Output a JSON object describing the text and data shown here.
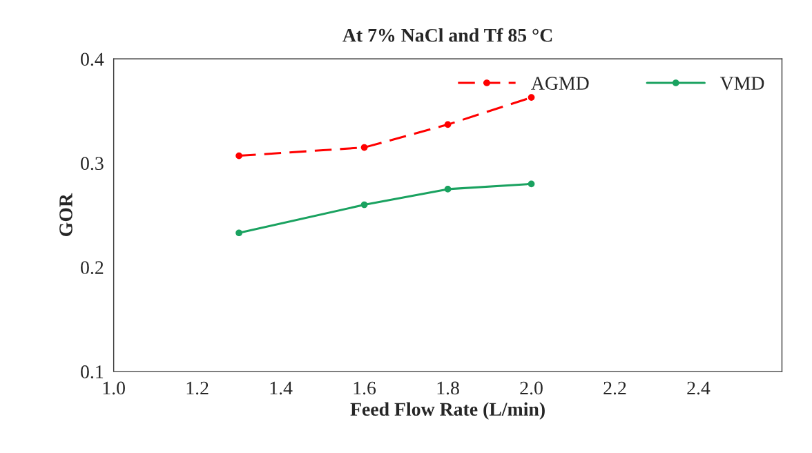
{
  "chart_data": {
    "type": "line",
    "title": "At 7% NaCl and Tf 85 °C",
    "xlabel": "Feed Flow Rate (L/min)",
    "ylabel": "GOR",
    "x": [
      1.3,
      1.6,
      1.8,
      2.0
    ],
    "series": [
      {
        "name": "AGMD",
        "color": "#ff0000",
        "values": [
          0.307,
          0.315,
          0.337,
          0.363
        ],
        "line_style": "dashed"
      },
      {
        "name": "VMD",
        "color": "#1aa260",
        "values": [
          0.233,
          0.26,
          0.275,
          0.28
        ],
        "line_style": "solid"
      }
    ],
    "xlim": [
      1.0,
      2.6
    ],
    "xticks": [
      {
        "value": 1,
        "label": "1.0"
      },
      {
        "value": 1.2,
        "label": "1.2"
      },
      {
        "value": 1.4,
        "label": "1.4"
      },
      {
        "value": 1.6,
        "label": "1.6"
      },
      {
        "value": 1.8,
        "label": "1.8"
      },
      {
        "value": 2,
        "label": "2.0"
      },
      {
        "value": 2.2,
        "label": "2.2"
      },
      {
        "value": 2.4,
        "label": "2.4"
      }
    ],
    "ylim": [
      0.1,
      0.4
    ],
    "yticks": [
      0.1,
      0.2,
      0.3,
      0.4
    ],
    "grid": false,
    "legend": "top right",
    "marker": "circle"
  }
}
